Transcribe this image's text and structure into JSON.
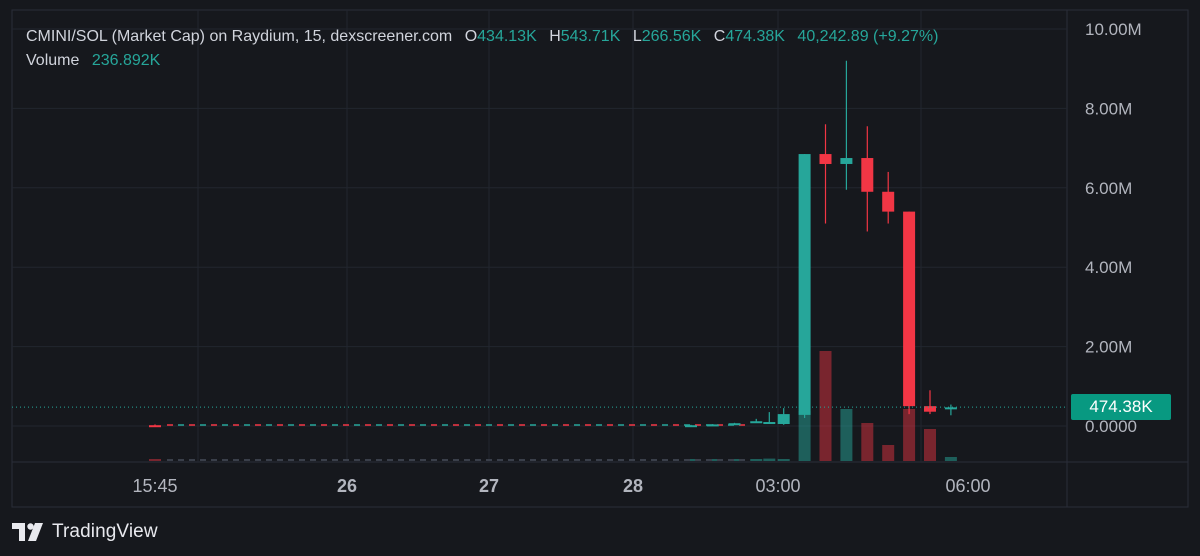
{
  "header": {
    "symbol": "CMINI/SOL (Market Cap) on Raydium, 15, dexscreener.com",
    "o_label": "O",
    "o_value": "434.13K",
    "h_label": "H",
    "h_value": "543.71K",
    "l_label": "L",
    "l_value": "266.56K",
    "c_label": "C",
    "c_value": "474.38K",
    "change": "40,242.89 (+9.27%)",
    "volume_label": "Volume",
    "volume_value": "236.892K"
  },
  "price_tag": "474.38K",
  "brand": "TradingView",
  "colors": {
    "up": "#26a69a",
    "down": "#f23645",
    "tag": "#089981",
    "background": "#16181d"
  },
  "chart_data": {
    "type": "candlestick",
    "y_axis": {
      "ticks": [
        0,
        2,
        4,
        6,
        8,
        10
      ],
      "tick_labels": [
        "0.0000",
        "2.00M",
        "4.00M",
        "6.00M",
        "8.00M",
        "10.00M"
      ],
      "unit": "M",
      "position": "right"
    },
    "x_axis": {
      "ticks": [
        {
          "label": "15:45",
          "bold": false,
          "t": 0
        },
        {
          "label": "26",
          "bold": true,
          "t": 1
        },
        {
          "label": "27",
          "bold": true,
          "t": 2
        },
        {
          "label": "28",
          "bold": true,
          "t": 3
        },
        {
          "label": "03:00",
          "bold": false,
          "t": 4
        },
        {
          "label": "06:00",
          "bold": false,
          "t": 5
        }
      ]
    },
    "last_price": 0.474,
    "grid": true,
    "flat_segment": {
      "from_t": 0,
      "to_t": 3.8,
      "value": 0.0,
      "dash_colors": [
        "#f23645",
        "#26a69a"
      ]
    },
    "candles": [
      {
        "t": 0.0,
        "o": 0.02,
        "h": 0.04,
        "l": 0.0,
        "c": 0.0,
        "v": 0.02
      },
      {
        "t": 3.4,
        "o": 0.0,
        "h": 0.03,
        "l": 0.0,
        "c": 0.02,
        "v": 0.01
      },
      {
        "t": 3.55,
        "o": 0.03,
        "h": 0.05,
        "l": 0.01,
        "c": 0.04,
        "v": 0.01
      },
      {
        "t": 3.7,
        "o": 0.04,
        "h": 0.08,
        "l": 0.03,
        "c": 0.07,
        "v": 0.01
      },
      {
        "t": 3.85,
        "o": 0.1,
        "h": 0.18,
        "l": 0.08,
        "c": 0.12,
        "v": 0.02
      },
      {
        "t": 3.94,
        "o": 0.08,
        "h": 0.35,
        "l": 0.05,
        "c": 0.1,
        "v": 0.06
      },
      {
        "t": 4.03,
        "o": 0.05,
        "h": 0.45,
        "l": 0.03,
        "c": 0.3,
        "v": 0.02
      },
      {
        "t": 4.14,
        "o": 0.28,
        "h": 6.85,
        "l": 0.2,
        "c": 6.85,
        "v": 1.25
      },
      {
        "t": 4.25,
        "o": 6.85,
        "h": 7.6,
        "l": 5.1,
        "c": 6.6,
        "v": 2.75
      },
      {
        "t": 4.36,
        "o": 6.6,
        "h": 9.2,
        "l": 5.95,
        "c": 6.75,
        "v": 1.3
      },
      {
        "t": 4.47,
        "o": 6.75,
        "h": 7.55,
        "l": 4.9,
        "c": 5.9,
        "v": 0.95
      },
      {
        "t": 4.58,
        "o": 5.9,
        "h": 6.4,
        "l": 5.1,
        "c": 5.4,
        "v": 0.4
      },
      {
        "t": 4.69,
        "o": 5.4,
        "h": 5.4,
        "l": 0.3,
        "c": 0.5,
        "v": 1.3
      },
      {
        "t": 4.8,
        "o": 0.5,
        "h": 0.9,
        "l": 0.3,
        "c": 0.36,
        "v": 0.8
      },
      {
        "t": 4.91,
        "o": 0.43,
        "h": 0.54,
        "l": 0.27,
        "c": 0.47,
        "v": 0.1
      }
    ]
  }
}
